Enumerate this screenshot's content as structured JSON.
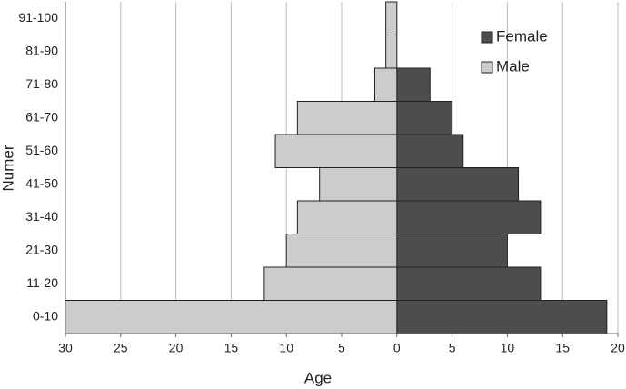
{
  "chart_data": {
    "type": "pyramid",
    "xlabel": "Age",
    "ylabel": "Numer",
    "categories": [
      "0-10",
      "11-20",
      "21-30",
      "31-40",
      "41-50",
      "51-60",
      "61-70",
      "71-80",
      "81-90",
      "91-100"
    ],
    "series": [
      {
        "name": "Female",
        "color": "#4d4d4d",
        "values": [
          19,
          13,
          10,
          13,
          11,
          6,
          5,
          3,
          0,
          0
        ]
      },
      {
        "name": "Male",
        "color": "#cccccc",
        "values": [
          -30,
          -12,
          -10,
          -9,
          -7,
          -11,
          -9,
          -2,
          -1,
          -1
        ]
      }
    ],
    "xlim": [
      -30,
      20
    ],
    "xticks": [
      {
        "value": -30,
        "label": "30"
      },
      {
        "value": -25,
        "label": "25"
      },
      {
        "value": -20,
        "label": "20"
      },
      {
        "value": -15,
        "label": "15"
      },
      {
        "value": -10,
        "label": "10"
      },
      {
        "value": -5,
        "label": "5"
      },
      0,
      5,
      10,
      15,
      20
    ],
    "grid": true,
    "legend": "top-right"
  }
}
